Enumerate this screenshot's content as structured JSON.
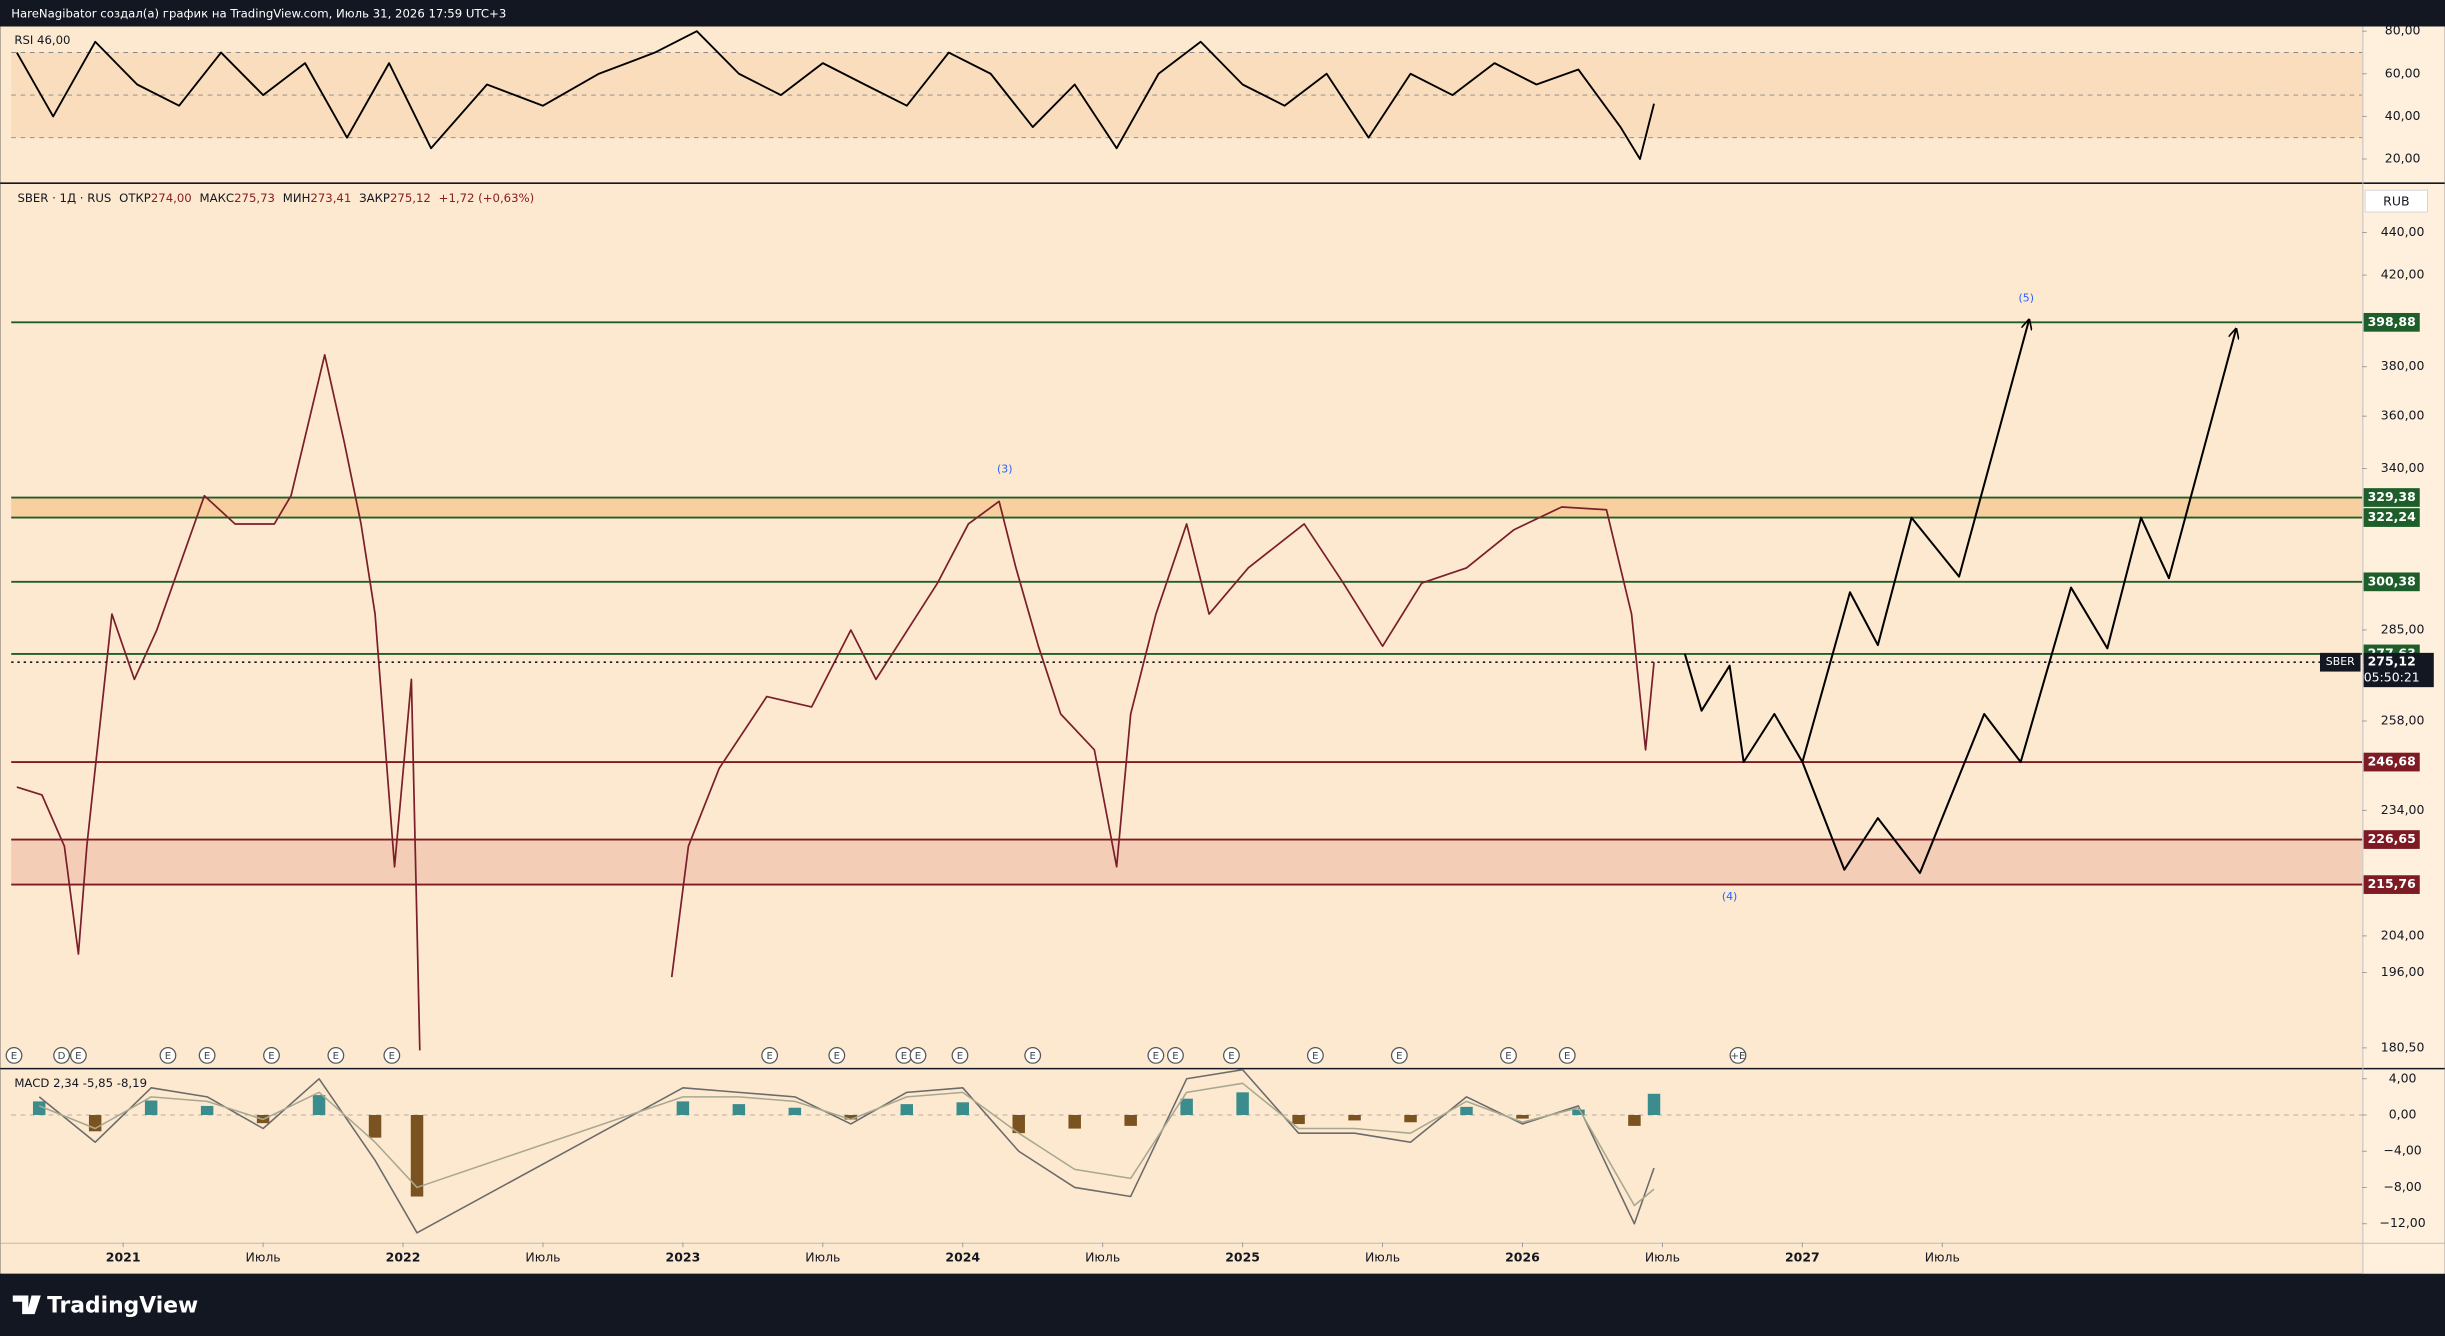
{
  "header": "HareNagibator создал(а) график на TradingView.com, Июль 31, 2026 17:59 UTC+3",
  "footer": "TradingView",
  "chart_data": [
    {
      "type": "line",
      "legend": "RSI 46,00",
      "x": [
        2020.62,
        2020.75,
        2020.9,
        2021.05,
        2021.2,
        2021.35,
        2021.5,
        2021.65,
        2021.8,
        2021.95,
        2022.1,
        2022.3,
        2022.5,
        2022.7,
        2022.9,
        2023.05,
        2023.2,
        2023.35,
        2023.5,
        2023.65,
        2023.8,
        2023.95,
        2024.1,
        2024.25,
        2024.4,
        2024.55,
        2024.7,
        2024.85,
        2025.0,
        2025.15,
        2025.3,
        2025.45,
        2025.6,
        2025.75,
        2025.9,
        2026.05,
        2026.2,
        2026.35,
        2026.42,
        2026.47
      ],
      "series": [
        {
          "name": "RSI",
          "color": "#000000",
          "values": [
            70,
            40,
            75,
            55,
            45,
            70,
            50,
            65,
            30,
            65,
            25,
            55,
            45,
            60,
            70,
            80,
            60,
            50,
            65,
            55,
            45,
            70,
            60,
            35,
            55,
            25,
            60,
            75,
            55,
            45,
            60,
            30,
            60,
            50,
            65,
            55,
            62,
            35,
            20,
            46
          ]
        }
      ],
      "ylim": [
        9,
        82.2
      ],
      "yticks": [
        {
          "value": 80,
          "label": "80,00"
        },
        {
          "value": 60,
          "label": "60,00"
        },
        {
          "value": 40,
          "label": "40,00"
        },
        {
          "value": 20,
          "label": "20,00"
        }
      ],
      "levels": [
        30,
        50,
        70
      ]
    },
    {
      "type": "line",
      "title": "SBER · 1Д · RUS",
      "ohlc": [
        [
          "ОТКР",
          "274,00"
        ],
        [
          "МАКС",
          "275,73"
        ],
        [
          "МИН",
          "273,41"
        ],
        [
          "ЗАКР",
          "275,12"
        ]
      ],
      "change": "+1,72 (+0,63%)",
      "currency": "RUB",
      "log_scale": true,
      "x": [
        2020.62,
        2020.71,
        2020.79,
        2020.84,
        2020.87,
        2020.96,
        2021.04,
        2021.12,
        2021.29,
        2021.4,
        2021.54,
        2021.6,
        2021.72,
        2021.79,
        2021.85,
        2021.9,
        2021.97,
        2022.03,
        2022.06,
        2022.5,
        2022.96,
        2023.02,
        2023.13,
        2023.3,
        2023.46,
        2023.6,
        2023.69,
        2023.91,
        2024.02,
        2024.13,
        2024.19,
        2024.27,
        2024.35,
        2024.47,
        2024.55,
        2024.6,
        2024.69,
        2024.8,
        2024.88,
        2025.02,
        2025.22,
        2025.36,
        2025.5,
        2025.64,
        2025.8,
        2025.97,
        2026.14,
        2026.3,
        2026.39,
        2026.44,
        2026.47
      ],
      "series": [
        {
          "name": "SBER",
          "color": "#7a1f2b",
          "values": [
            240,
            238,
            225,
            200,
            225,
            290,
            270,
            285,
            330,
            320,
            320,
            330,
            385,
            350,
            320,
            290,
            220,
            270,
            180,
            null,
            195,
            225,
            245,
            265,
            262,
            285,
            270,
            300,
            320,
            328,
            305,
            280,
            260,
            250,
            220,
            260,
            290,
            320,
            290,
            305,
            320,
            300,
            280,
            300,
            305,
            318,
            326,
            325,
            290,
            250,
            275.12
          ]
        }
      ],
      "xlim": [
        2020.6,
        2029.0
      ],
      "xticks": [
        2021,
        {
          "value": 2021.5,
          "label": "Июль"
        },
        2022,
        {
          "value": 2022.5,
          "label": "Июль"
        },
        2023,
        {
          "value": 2023.5,
          "label": "Июль"
        },
        2024,
        {
          "value": 2024.5,
          "label": "Июль"
        },
        2025,
        {
          "value": 2025.5,
          "label": "Июль"
        },
        2026,
        {
          "value": 2026.5,
          "label": "Июль"
        },
        2027,
        {
          "value": 2027.5,
          "label": "Июль"
        }
      ],
      "ylim": [
        176.6,
        464
      ],
      "yticks": [
        {
          "value": 440,
          "label": "440,00"
        },
        {
          "value": 420,
          "label": "420,00"
        },
        {
          "value": 380,
          "label": "380,00"
        },
        {
          "value": 360,
          "label": "360,00"
        },
        {
          "value": 340,
          "label": "340,00"
        },
        {
          "value": 285,
          "label": "285,00"
        },
        {
          "value": 258,
          "label": "258,00"
        },
        {
          "value": 234,
          "label": "234,00"
        },
        {
          "value": 204,
          "label": "204,00"
        },
        {
          "value": 196,
          "label": "196,00"
        },
        {
          "value": 180.5,
          "label": "180,50"
        }
      ],
      "levels": [
        {
          "value": 398.88,
          "label": "398,88",
          "color": "#1e5e2a"
        },
        {
          "value": 329.38,
          "label": "329,38",
          "color": "#1e5e2a"
        },
        {
          "value": 322.24,
          "label": "322,24",
          "color": "#1e5e2a"
        },
        {
          "value": 300.38,
          "label": "300,38",
          "color": "#1e5e2a"
        },
        {
          "value": 277.63,
          "label": "277,63",
          "color": "#1e5e2a"
        },
        {
          "value": 246.68,
          "label": "246,68",
          "color": "#7d1a24"
        },
        {
          "value": 226.65,
          "label": "226,65",
          "color": "#7d1a24"
        },
        {
          "value": 215.76,
          "label": "215,76",
          "color": "#7d1a24"
        }
      ],
      "zones": [
        {
          "levels": [
            1,
            2
          ],
          "color": "#f8cf9f"
        },
        {
          "levels": [
            6,
            7
          ],
          "color": "#f3cdb6"
        }
      ],
      "last": {
        "name": "SBER",
        "value": 275.12,
        "label": "275,12",
        "countdown": "05:50:21"
      },
      "projections": [
        {
          "color": "#000000",
          "x": [
            2026.58,
            2026.64,
            2026.74,
            2026.79,
            2026.9,
            2027.0,
            2027.17,
            2027.27,
            2027.39,
            2027.56,
            2027.81
          ],
          "values": [
            277.6,
            260.9,
            274.1,
            246.7,
            260.0,
            246.7,
            297.0,
            280.3,
            322.2,
            302.1,
            400.0
          ]
        },
        {
          "color": "#000000",
          "x": [
            2027.0,
            2027.15,
            2027.27,
            2027.42,
            2027.65,
            2027.78,
            2027.96,
            2028.09,
            2028.21,
            2028.31,
            2028.55
          ],
          "values": [
            246.7,
            219.3,
            232.0,
            218.5,
            260.0,
            246.7,
            298.5,
            279.3,
            322.2,
            301.6,
            396.0
          ]
        }
      ],
      "annotations": [
        {
          "text": "(3)",
          "x": 2024.15,
          "y": 339.6
        },
        {
          "text": "(5)",
          "x": 2027.8,
          "y": 409.5
        },
        {
          "text": "(4)",
          "x": 2026.74,
          "y": 212.9
        }
      ],
      "events": {
        "x": [
          2020.61,
          2020.78,
          2020.84,
          2021.16,
          2021.3,
          2021.53,
          2021.76,
          2021.96,
          2023.31,
          2023.55,
          2023.79,
          2023.84,
          2023.99,
          2024.25,
          2024.69,
          2024.76,
          2024.96,
          2025.26,
          2025.56,
          2025.95,
          2026.16,
          2026.77
        ],
        "labels": [
          "E",
          "D",
          "E",
          "E",
          "E",
          "E",
          "E",
          "E",
          "E",
          "E",
          "E",
          "E",
          "E",
          "E",
          "E",
          "E",
          "E",
          "E",
          "E",
          "E",
          "E",
          "+E"
        ]
      }
    },
    {
      "type": "bar",
      "legend": "MACD 2,34 -5,85 -8,19",
      "x": [
        2020.7,
        2020.9,
        2021.1,
        2021.3,
        2021.5,
        2021.7,
        2021.9,
        2022.05,
        2023.0,
        2023.2,
        2023.4,
        2023.6,
        2023.8,
        2024.0,
        2024.2,
        2024.4,
        2024.6,
        2024.8,
        2025.0,
        2025.2,
        2025.4,
        2025.6,
        2025.8,
        2026.0,
        2026.2,
        2026.4,
        2026.47
      ],
      "colors": {
        "up": "#3b8c8c",
        "down": "#7a5320"
      },
      "values": [
        1.5,
        -1.8,
        1.6,
        1.0,
        -0.9,
        2.2,
        -2.5,
        -9,
        1.5,
        1.2,
        0.8,
        -0.5,
        1.2,
        1.4,
        -2.0,
        -1.5,
        -1.2,
        1.8,
        2.5,
        -1.0,
        -0.6,
        -0.8,
        0.9,
        -0.4,
        0.6,
        -1.2,
        2.34
      ],
      "series": [
        {
          "name": "MACD",
          "color": "#6b6b6b",
          "values": [
            2,
            -3,
            3,
            2,
            -1.5,
            4,
            -5,
            -13,
            3,
            2.5,
            2,
            -1,
            2.5,
            3,
            -4,
            -8,
            -9,
            4,
            5,
            -2,
            -2,
            -3,
            2,
            -1,
            1,
            -12,
            -5.85
          ]
        },
        {
          "name": "Signal",
          "color": "#a8a890",
          "values": [
            1,
            -1.5,
            2,
            1.5,
            -0.5,
            2.5,
            -3,
            -8,
            2,
            2,
            1.5,
            -0.5,
            2,
            2.5,
            -2,
            -6,
            -7,
            2.5,
            3.5,
            -1.5,
            -1.5,
            -2,
            1.5,
            -0.8,
            0.8,
            -10,
            -8.19
          ]
        }
      ],
      "ylim": [
        -14.07,
        5.03
      ],
      "yticks": [
        {
          "value": 4,
          "label": "4,00"
        },
        {
          "value": 0,
          "label": "0,00"
        },
        {
          "value": -4,
          "label": "−4,00"
        },
        {
          "value": -8,
          "label": "−8,00"
        },
        {
          "value": -12,
          "label": "−12,00"
        }
      ]
    }
  ]
}
